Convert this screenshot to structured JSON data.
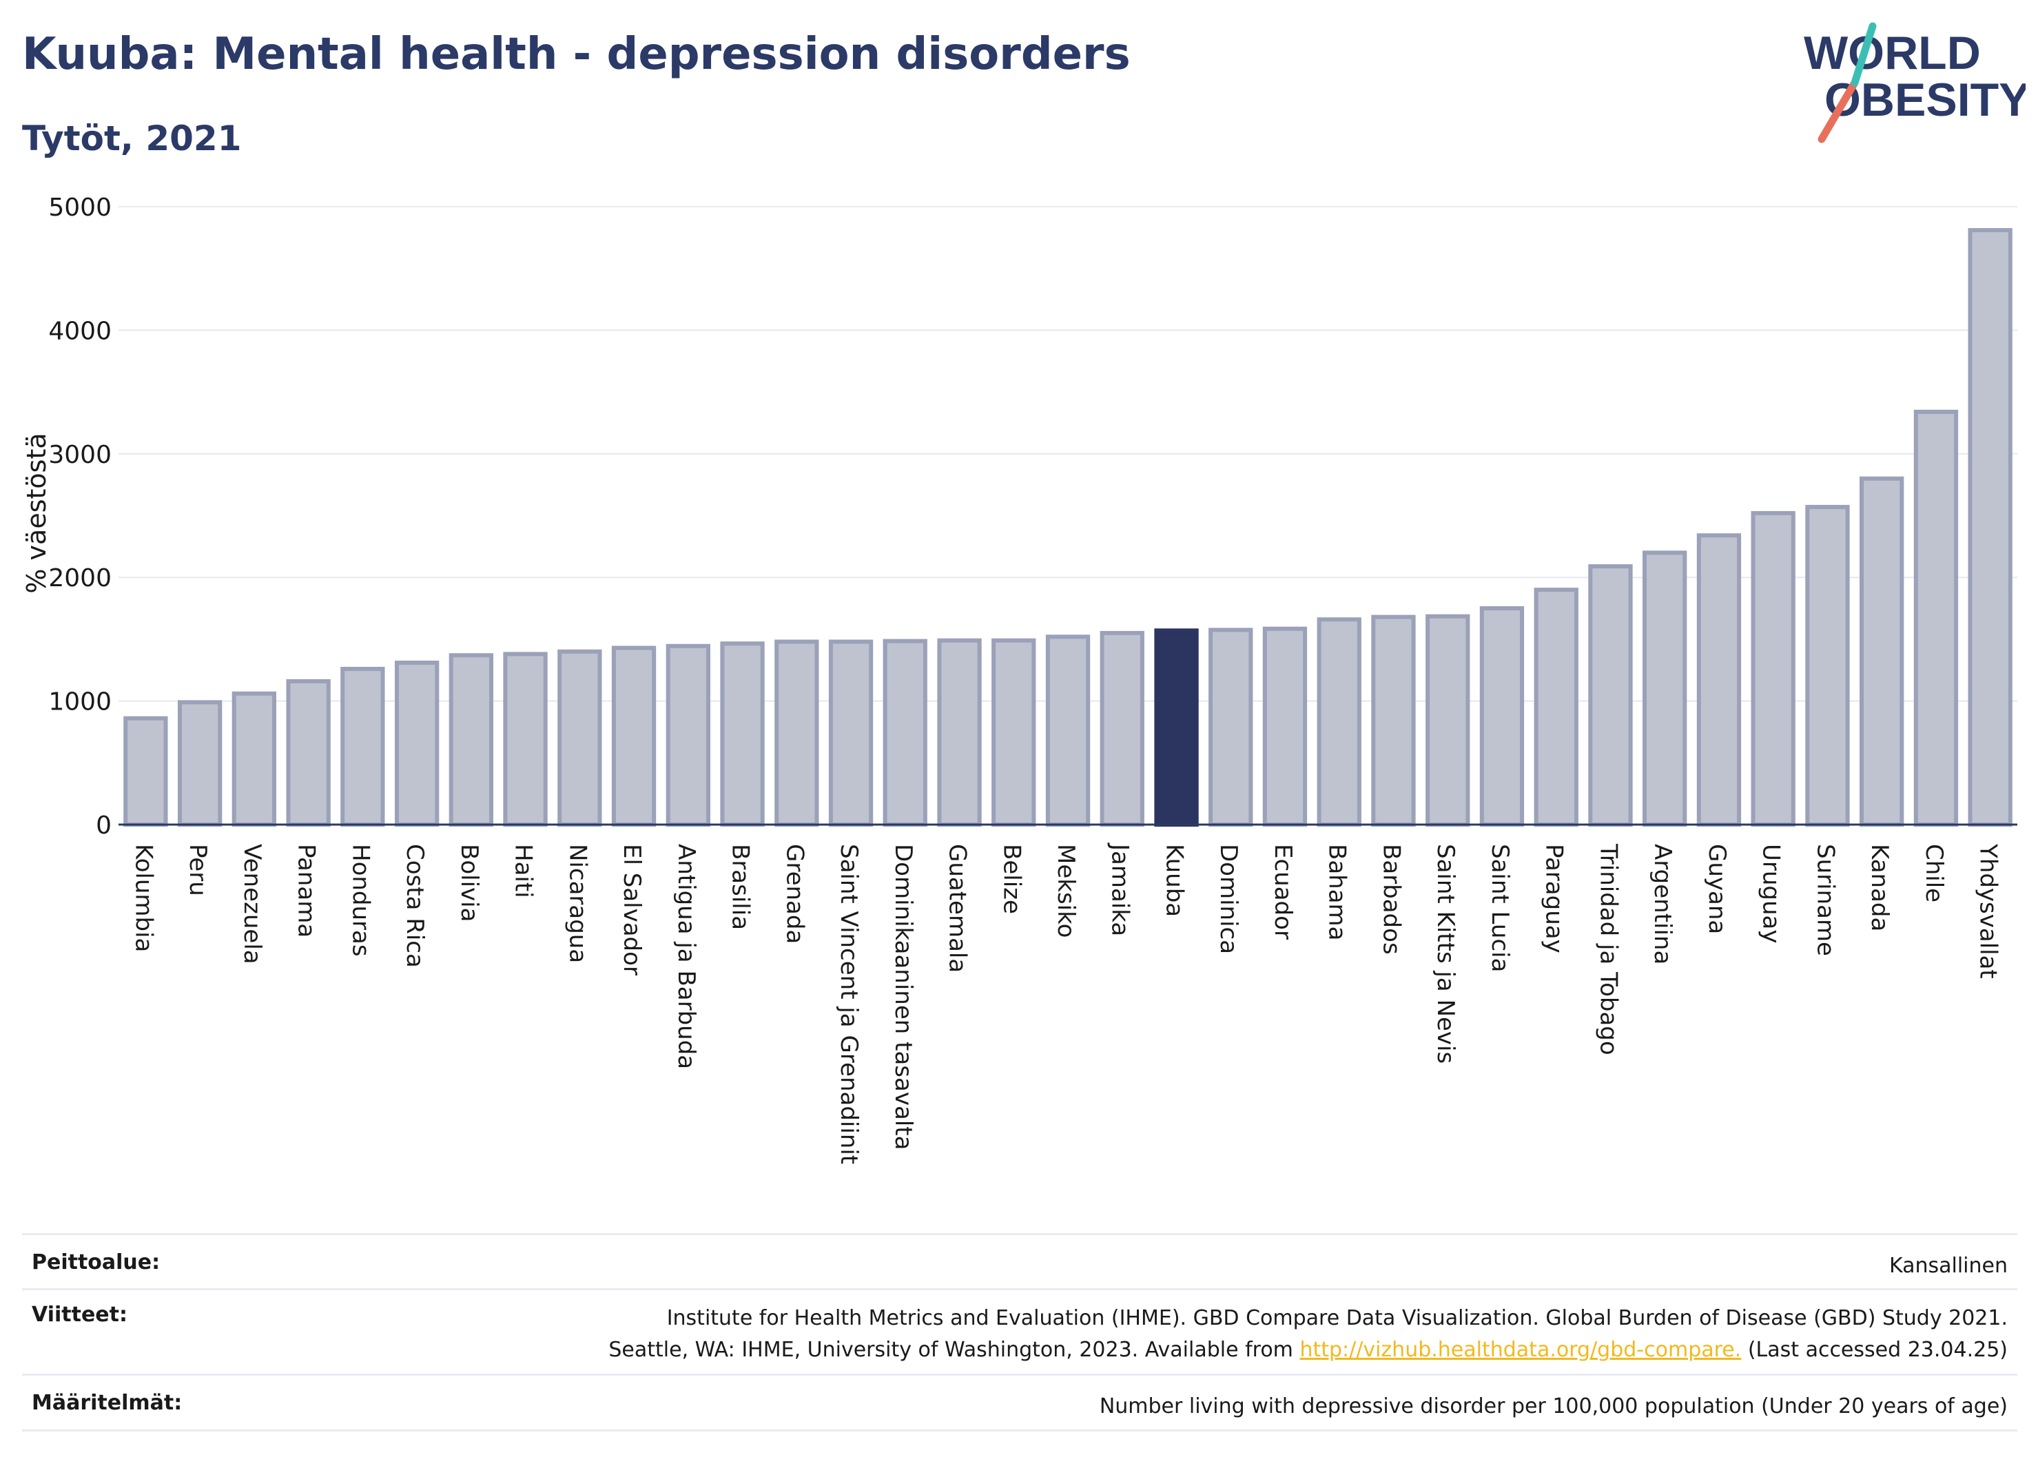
{
  "header": {
    "title": "Kuuba: Mental health - depression disorders",
    "subtitle": "Tytöt, 2021"
  },
  "logo": {
    "line1": "WORLD",
    "line2": "OBESITY",
    "colors": {
      "text": "#2b3a67",
      "slash_red": "#e8705a",
      "slash_teal": "#3bbfb4"
    }
  },
  "chart_data": {
    "type": "bar",
    "title": "Kuuba: Mental health - depression disorders",
    "subtitle": "Tytöt, 2021",
    "xlabel": "",
    "ylabel": "% väestöstä",
    "ylim": [
      0,
      5000
    ],
    "yticks": [
      0,
      1000,
      2000,
      3000,
      4000,
      5000
    ],
    "grid": true,
    "highlight": "Kuuba",
    "colors": {
      "bar": "#bfc3d0",
      "bar_border": "#9aa1b8",
      "highlight": "#2b3560",
      "grid": "#e6e8ee",
      "axis": "#2b3a67"
    },
    "categories": [
      "Kolumbia",
      "Peru",
      "Venezuela",
      "Panama",
      "Honduras",
      "Costa Rica",
      "Bolivia",
      "Haiti",
      "Nicaragua",
      "El Salvador",
      "Antigua ja Barbuda",
      "Brasilia",
      "Grenada",
      "Saint Vincent ja Grenadiinit",
      "Dominikaaninen tasavalta",
      "Guatemala",
      "Belize",
      "Meksiko",
      "Jamaika",
      "Kuuba",
      "Dominica",
      "Ecuador",
      "Bahama",
      "Barbados",
      "Saint Kitts ja Nevis",
      "Saint Lucia",
      "Paraguay",
      "Trinidad ja Tobago",
      "Argentiina",
      "Guyana",
      "Uruguay",
      "Suriname",
      "Kanada",
      "Chile",
      "Yhdysvallat"
    ],
    "values": [
      860,
      990,
      1060,
      1160,
      1260,
      1310,
      1370,
      1380,
      1400,
      1430,
      1445,
      1465,
      1480,
      1480,
      1485,
      1490,
      1490,
      1520,
      1550,
      1570,
      1575,
      1585,
      1660,
      1680,
      1685,
      1750,
      1900,
      2090,
      2200,
      2340,
      2520,
      2570,
      2800,
      3340,
      4810
    ]
  },
  "footer": {
    "coverage_label": "Peittoalue:",
    "coverage_value": "Kansallinen",
    "references_label": "Viitteet:",
    "references_line1": "Institute for Health Metrics and Evaluation (IHME). GBD Compare Data Visualization. Global Burden of Disease (GBD) Study 2021.",
    "references_line2_pre": "Seattle, WA: IHME, University of Washington, 2023. Available from ",
    "references_link": "http://vizhub.healthdata.org/gbd-compare.",
    "references_line2_post": " (Last accessed 23.04.25)",
    "definitions_label": "Määritelmät:",
    "definitions_value": "Number living with depressive disorder per 100,000 population (Under 20 years of age)"
  }
}
